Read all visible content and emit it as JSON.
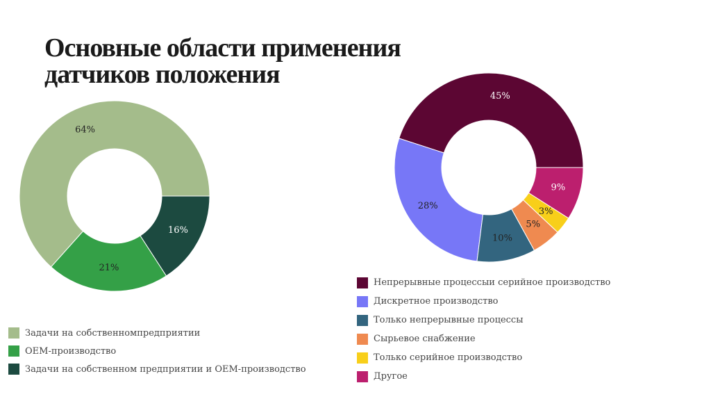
{
  "title_lines": [
    "Основные области применения",
    "датчиков положения"
  ],
  "chart_data": [
    {
      "type": "pie",
      "donut": true,
      "start_angle_deg": 0,
      "categories": [
        "Задачи на собственномпредприятии",
        "OEM-производство",
        "Задачи на собственном предприятии и OEM-производство"
      ],
      "values": [
        64,
        21,
        16
      ],
      "labels": [
        "64%",
        "21%",
        "16%"
      ],
      "colors": [
        "#a4bc8b",
        "#34a047",
        "#1c4a40"
      ],
      "label_colors": [
        "#222222",
        "#222222",
        "#ffffff"
      ],
      "legend_position": "bottom-left"
    },
    {
      "type": "pie",
      "donut": true,
      "start_angle_deg": 0,
      "categories": [
        "Непрерывные процессыи серийное производство",
        "Дискретное производство",
        "Только непрерывные процессы",
        "Сырьевое снабжение",
        "Только серийное производство",
        "Другое"
      ],
      "values": [
        45,
        28,
        10,
        5,
        3,
        9
      ],
      "labels": [
        "45%",
        "28%",
        "10%",
        "5%",
        "3%",
        "9%"
      ],
      "colors": [
        "#5c0633",
        "#7777f7",
        "#33657f",
        "#ef8a50",
        "#f8cf1a",
        "#bc1f6e"
      ],
      "label_colors": [
        "#ffffff",
        "#222222",
        "#222222",
        "#222222",
        "#222222",
        "#ffffff"
      ],
      "legend_position": "bottom-right"
    }
  ]
}
